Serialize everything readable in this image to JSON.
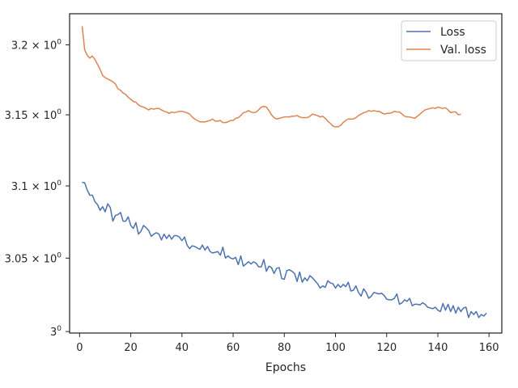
{
  "chart_data": {
    "type": "line",
    "title": "",
    "xlabel": "Epochs",
    "ylabel": "",
    "xlim": [
      -3.9,
      165
    ],
    "ylim": [
      2.999,
      3.2225
    ],
    "yscale": "log",
    "grid": false,
    "legend_position": "top-right",
    "x_ticks": [
      0,
      20,
      40,
      60,
      80,
      100,
      120,
      140,
      160
    ],
    "x_tick_labels": [
      "0",
      "20",
      "40",
      "60",
      "80",
      "100",
      "120",
      "140",
      "160"
    ],
    "y_ticks": [
      3.0,
      3.05,
      3.1,
      3.15,
      3.2
    ],
    "y_tick_labels": [
      {
        "base": "3",
        "exp": "0"
      },
      {
        "base": "3.05 × 10",
        "exp": "0"
      },
      {
        "base": "3.1 × 10",
        "exp": "0"
      },
      {
        "base": "3.15 × 10",
        "exp": "0"
      },
      {
        "base": "3.2 × 10",
        "exp": "0"
      }
    ],
    "x_start": 1,
    "series": [
      {
        "name": "Loss",
        "color": "#4c72b0",
        "values": [
          3.1025,
          3.1022,
          3.097,
          3.0935,
          3.0935,
          3.089,
          3.087,
          3.083,
          3.0855,
          3.082,
          3.0875,
          3.085,
          3.0755,
          3.0795,
          3.08,
          3.0815,
          3.0755,
          3.0755,
          3.0785,
          3.0725,
          3.0705,
          3.0745,
          3.0665,
          3.0685,
          3.0725,
          3.071,
          3.069,
          3.065,
          3.0665,
          3.0675,
          3.0665,
          3.0625,
          3.0665,
          3.0635,
          3.066,
          3.063,
          3.0655,
          3.0655,
          3.0645,
          3.062,
          3.0645,
          3.059,
          3.0565,
          3.0585,
          3.058,
          3.057,
          3.056,
          3.059,
          3.0555,
          3.058,
          3.0545,
          3.0535,
          3.054,
          3.0545,
          3.052,
          3.0575,
          3.05,
          3.0515,
          3.05,
          3.0495,
          3.0505,
          3.0455,
          3.0515,
          3.0445,
          3.046,
          3.0475,
          3.046,
          3.0475,
          3.0465,
          3.044,
          3.044,
          3.049,
          3.041,
          3.0445,
          3.0435,
          3.0395,
          3.043,
          3.0435,
          3.036,
          3.0355,
          3.0415,
          3.042,
          3.041,
          3.0395,
          3.034,
          3.0405,
          3.0335,
          3.0365,
          3.0345,
          3.038,
          3.0365,
          3.0345,
          3.0325,
          3.0295,
          3.031,
          3.03,
          3.0345,
          3.033,
          3.0325,
          3.0295,
          3.032,
          3.03,
          3.032,
          3.0305,
          3.0335,
          3.0275,
          3.028,
          3.031,
          3.0265,
          3.024,
          3.029,
          3.0265,
          3.0225,
          3.024,
          3.0265,
          3.026,
          3.0255,
          3.026,
          3.0245,
          3.022,
          3.0215,
          3.0215,
          3.0225,
          3.0255,
          3.0185,
          3.0195,
          3.0215,
          3.0205,
          3.0225,
          3.0175,
          3.0185,
          3.0185,
          3.018,
          3.0195,
          3.0185,
          3.0165,
          3.016,
          3.0155,
          3.0165,
          3.0145,
          3.0135,
          3.019,
          3.0145,
          3.0185,
          3.0135,
          3.0175,
          3.0125,
          3.0165,
          3.0135,
          3.016,
          3.0165,
          3.0095,
          3.0135,
          3.0115,
          3.0135,
          3.0095,
          3.0115,
          3.0105,
          3.0125
        ]
      },
      {
        "name": "Val. loss",
        "color": "#dd8452",
        "values": [
          3.2135,
          3.1965,
          3.1925,
          3.1905,
          3.192,
          3.1895,
          3.186,
          3.1825,
          3.178,
          3.1765,
          3.1755,
          3.1745,
          3.1735,
          3.172,
          3.1685,
          3.1675,
          3.1655,
          3.1645,
          3.1625,
          3.161,
          3.1595,
          3.159,
          3.157,
          3.156,
          3.1555,
          3.1545,
          3.1535,
          3.1545,
          3.154,
          3.1545,
          3.1545,
          3.1535,
          3.1525,
          3.152,
          3.151,
          3.152,
          3.1515,
          3.152,
          3.1525,
          3.1525,
          3.152,
          3.1515,
          3.1505,
          3.1485,
          3.147,
          3.146,
          3.145,
          3.145,
          3.145,
          3.1455,
          3.146,
          3.147,
          3.1455,
          3.1455,
          3.146,
          3.1445,
          3.1445,
          3.145,
          3.146,
          3.146,
          3.1475,
          3.148,
          3.1495,
          3.1515,
          3.152,
          3.153,
          3.152,
          3.1515,
          3.152,
          3.1535,
          3.1555,
          3.156,
          3.1555,
          3.153,
          3.15,
          3.148,
          3.147,
          3.1475,
          3.148,
          3.1485,
          3.1485,
          3.1485,
          3.149,
          3.149,
          3.1495,
          3.1485,
          3.148,
          3.148,
          3.148,
          3.149,
          3.1505,
          3.15,
          3.1495,
          3.1485,
          3.149,
          3.1475,
          3.1455,
          3.144,
          3.142,
          3.1415,
          3.1415,
          3.1425,
          3.1445,
          3.146,
          3.147,
          3.147,
          3.147,
          3.148,
          3.1495,
          3.1505,
          3.1515,
          3.152,
          3.153,
          3.1525,
          3.153,
          3.1525,
          3.1525,
          3.1515,
          3.1505,
          3.151,
          3.151,
          3.1515,
          3.1525,
          3.152,
          3.152,
          3.1505,
          3.149,
          3.1485,
          3.1485,
          3.148,
          3.1475,
          3.149,
          3.1505,
          3.152,
          3.1535,
          3.154,
          3.1545,
          3.155,
          3.1545,
          3.1555,
          3.155,
          3.1545,
          3.155,
          3.1535,
          3.1515,
          3.152,
          3.152,
          3.15,
          3.1505
        ]
      }
    ]
  }
}
